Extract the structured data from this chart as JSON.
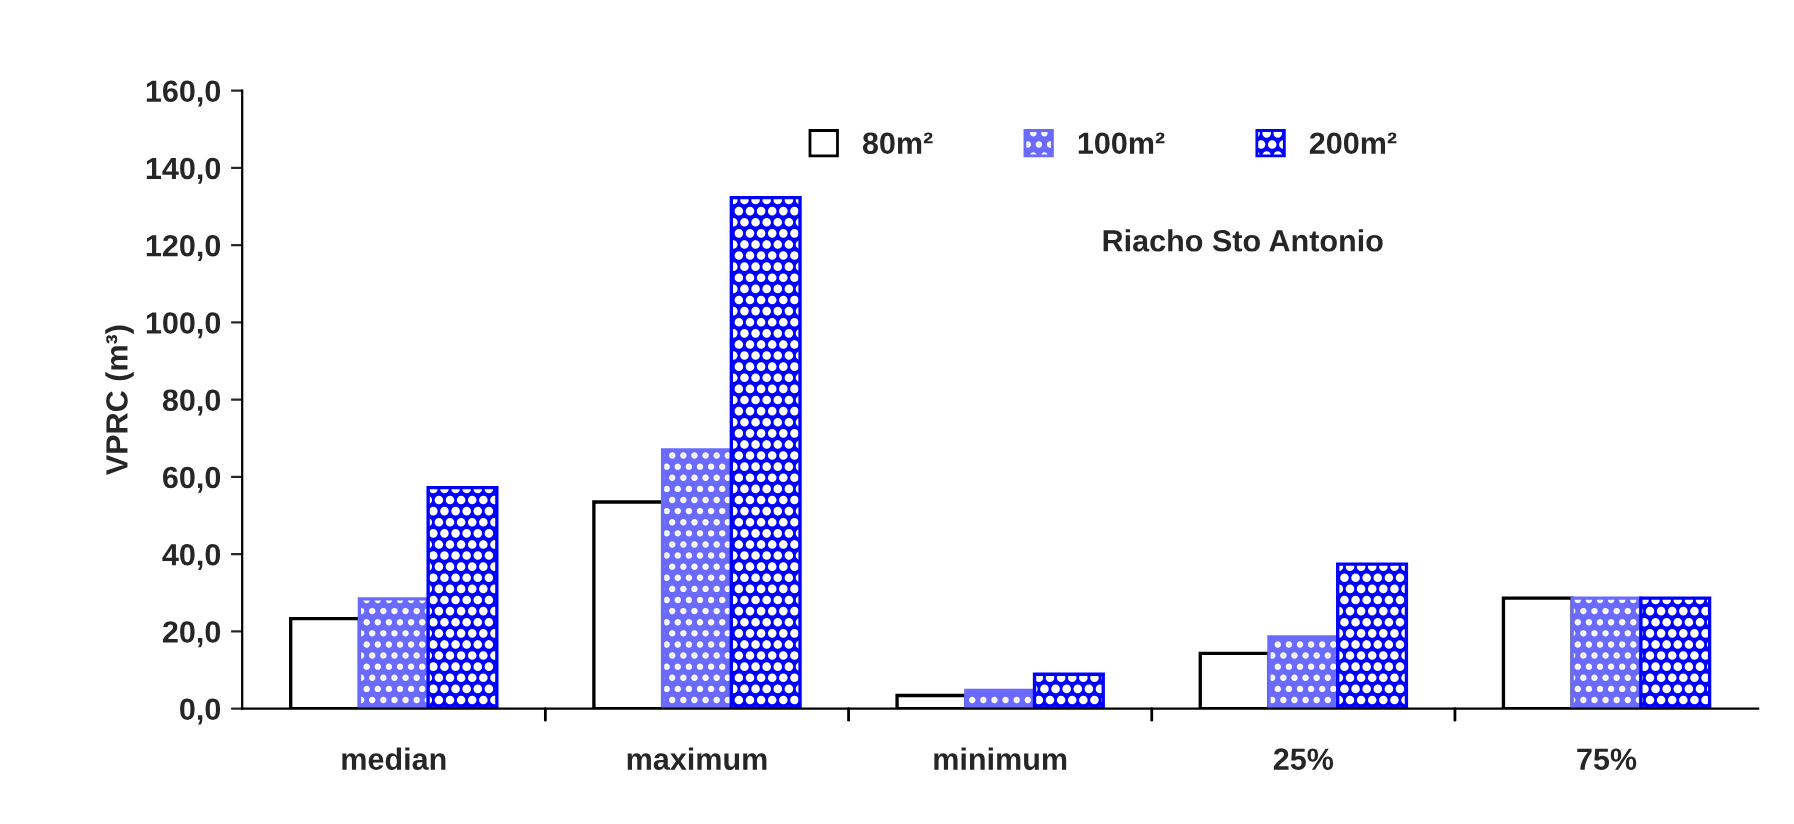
{
  "chart_data": {
    "type": "bar",
    "categories": [
      "median",
      "maximum",
      "minimum",
      "25%",
      "75%"
    ],
    "series": [
      {
        "name": "80m²",
        "color": "#ffffff",
        "values": [
          23.3,
          53.5,
          3.4,
          14.3,
          28.6
        ]
      },
      {
        "name": "100m²",
        "color": "#6a6aff",
        "values": [
          28.4,
          67.0,
          4.7,
          18.6,
          28.6
        ]
      },
      {
        "name": "200m²",
        "color": "#0000ff",
        "values": [
          57.2,
          132.3,
          8.9,
          37.4,
          28.6
        ]
      }
    ],
    "ylabel": "VPRC (m³)",
    "annotations": [
      {
        "text": "Riacho Sto Antonio"
      }
    ],
    "ylim": [
      0,
      160
    ],
    "yticks": [
      {
        "value": 0,
        "label": "0,0"
      },
      {
        "value": 20,
        "label": "20,0"
      },
      {
        "value": 40,
        "label": "40,0"
      },
      {
        "value": 60,
        "label": "60,0"
      },
      {
        "value": 80,
        "label": "80,0"
      },
      {
        "value": 100,
        "label": "100,0"
      },
      {
        "value": 120,
        "label": "120,0"
      },
      {
        "value": 140,
        "label": "140,0"
      },
      {
        "value": 160,
        "label": "160,0"
      }
    ],
    "grid": false,
    "legend": "top right"
  }
}
